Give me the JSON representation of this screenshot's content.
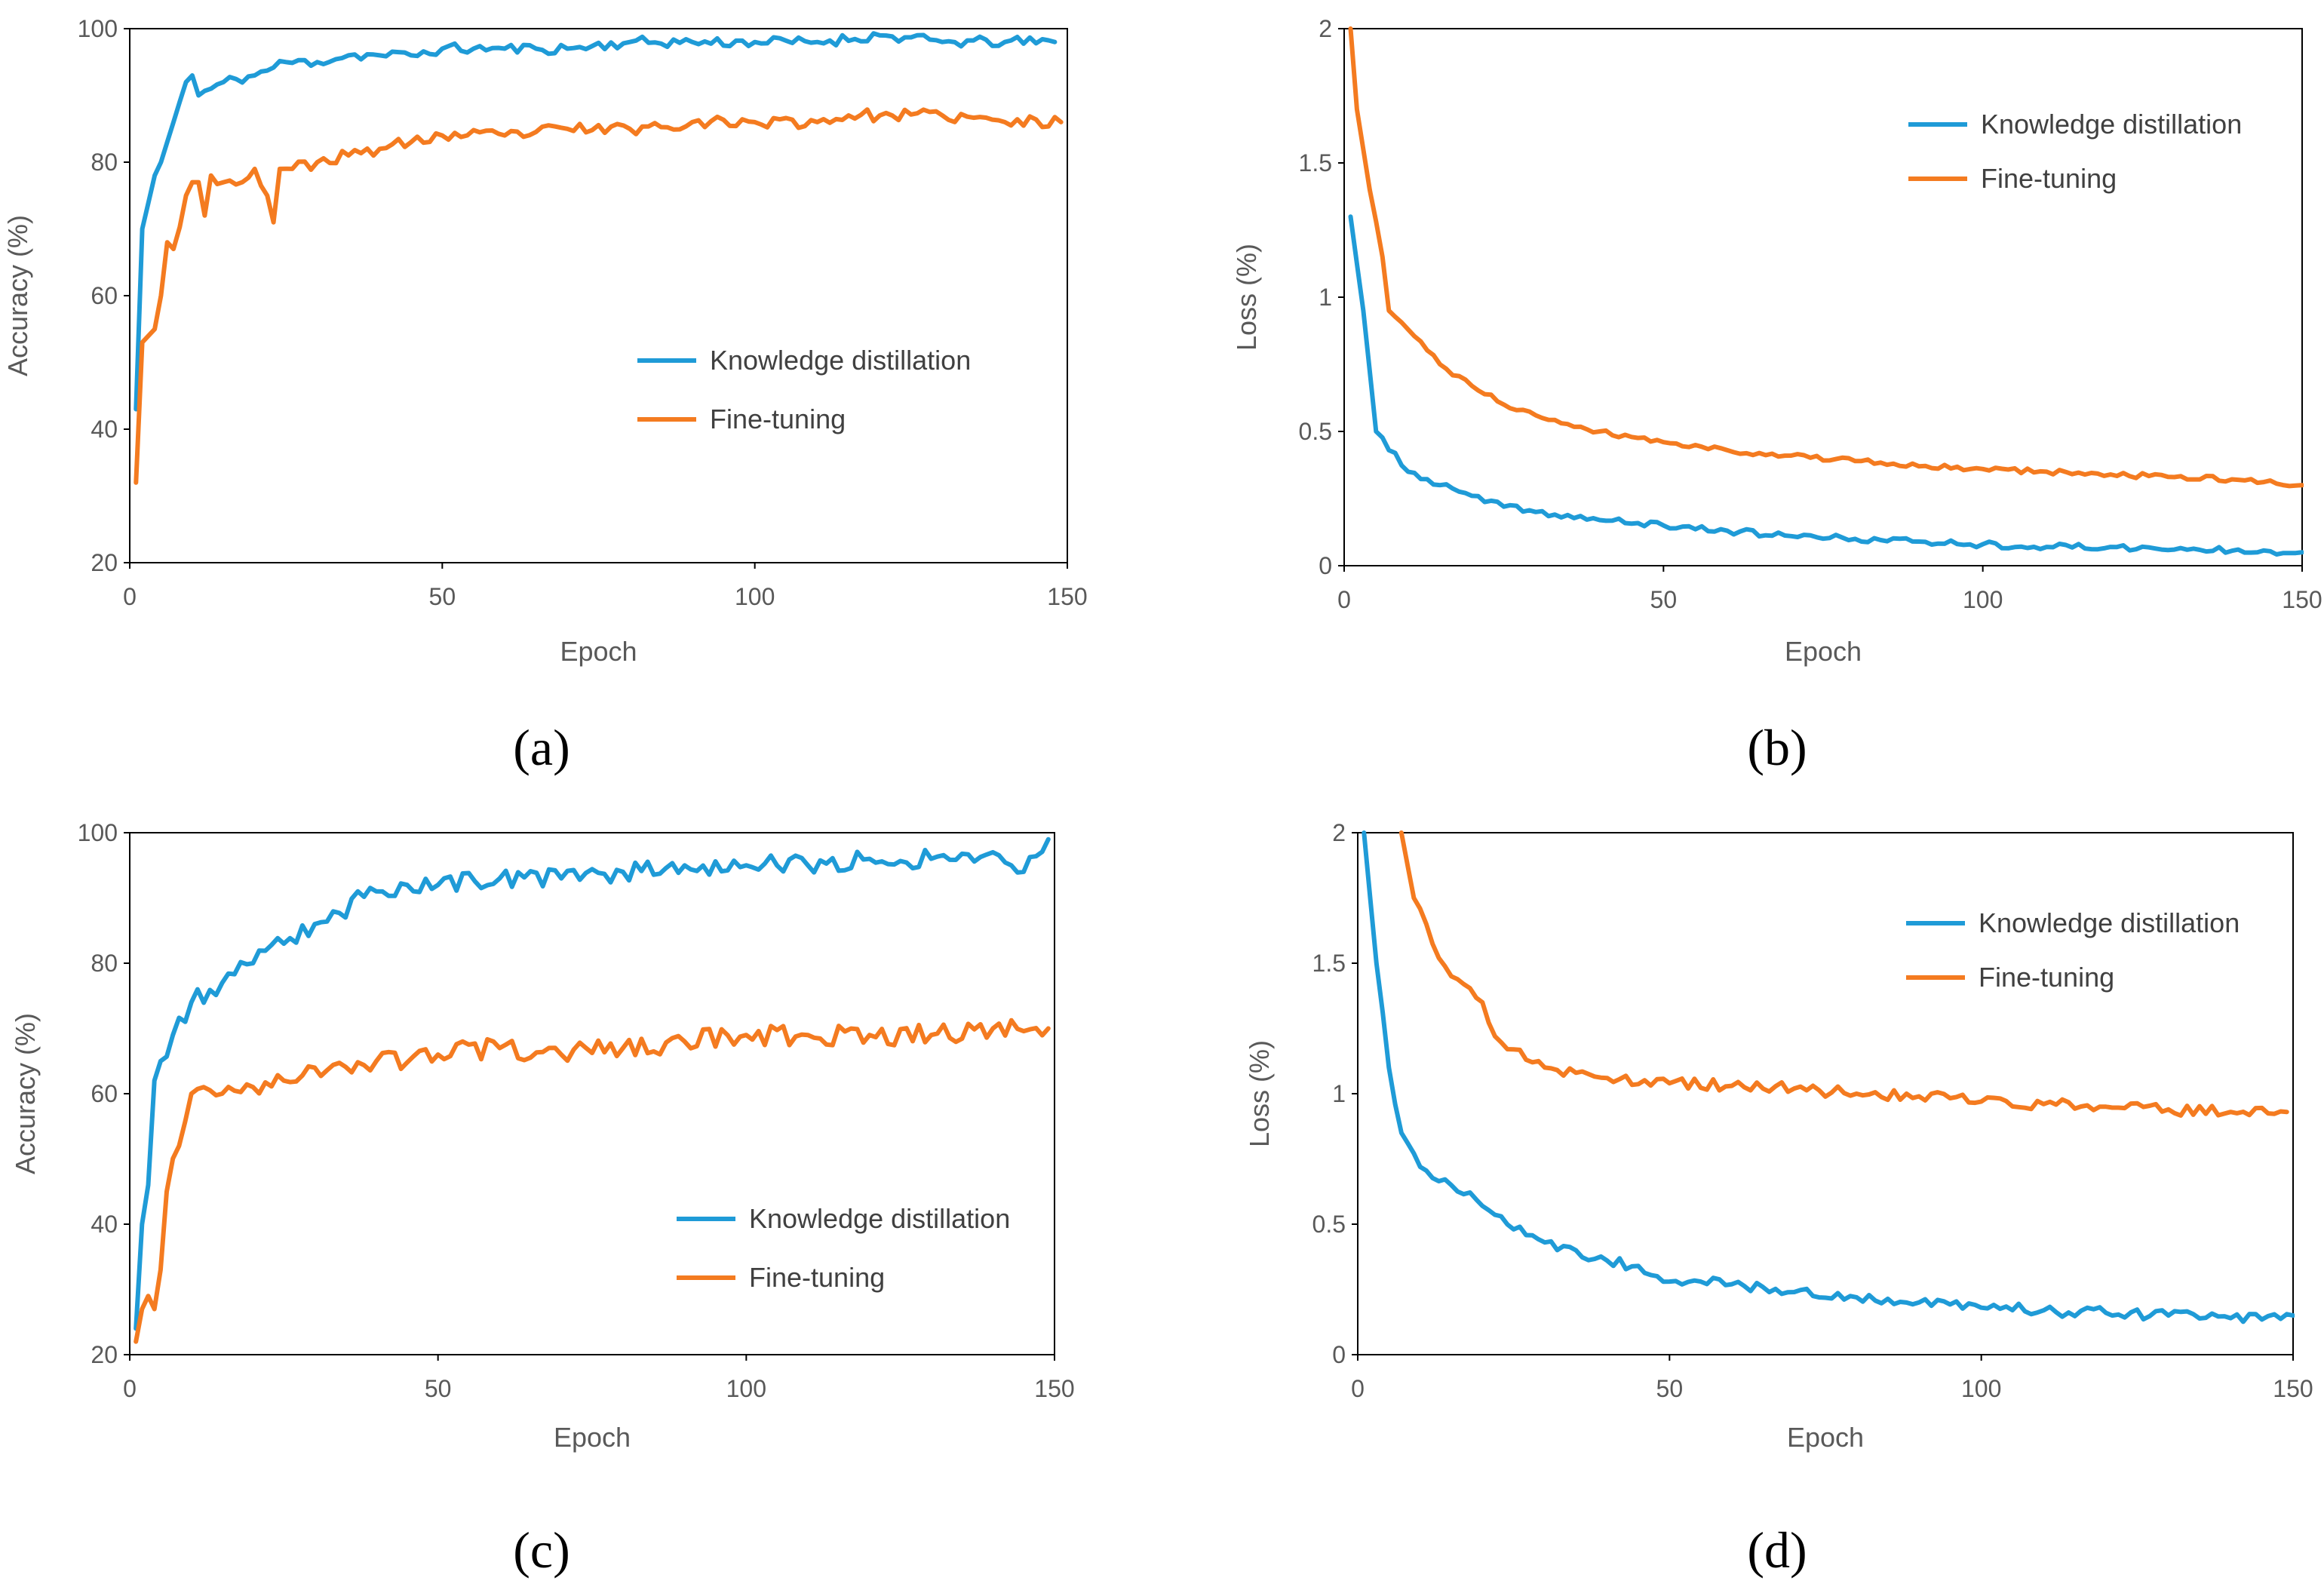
{
  "chart_data": [
    {
      "type": "line",
      "panel": "a",
      "caption": "(a)",
      "xlabel": "Epoch",
      "ylabel": "Accuracy (%)",
      "xlim": [
        0,
        150
      ],
      "ylim": [
        20,
        100
      ],
      "xticks": [
        0,
        50,
        100,
        150
      ],
      "yticks": [
        20,
        40,
        60,
        80,
        100
      ],
      "legend_position": "center-right",
      "series": [
        {
          "name": "Knowledge distillation",
          "color": "#1f9bd7",
          "start": 43,
          "anchors": [
            [
              1,
              43
            ],
            [
              2,
              70
            ],
            [
              4,
              78
            ],
            [
              5,
              80
            ],
            [
              7,
              86
            ],
            [
              9,
              92
            ],
            [
              10,
              93
            ],
            [
              11,
              90
            ],
            [
              13,
              91
            ],
            [
              15,
              92
            ],
            [
              20,
              93
            ],
            [
              25,
              95
            ],
            [
              30,
              95
            ],
            [
              35,
              96
            ],
            [
              40,
              96
            ],
            [
              45,
              96
            ],
            [
              50,
              97
            ],
            [
              55,
              97
            ],
            [
              60,
              97
            ],
            [
              65,
              97
            ],
            [
              70,
              97
            ],
            [
              80,
              98
            ],
            [
              90,
              98
            ],
            [
              100,
              98
            ],
            [
              110,
              98
            ],
            [
              120,
              99
            ],
            [
              130,
              98
            ],
            [
              140,
              98
            ],
            [
              148,
              98
            ]
          ],
          "noise": 0.8,
          "seed": 11
        },
        {
          "name": "Fine-tuning",
          "color": "#f47b20",
          "start": 32,
          "anchors": [
            [
              1,
              32
            ],
            [
              2,
              53
            ],
            [
              4,
              55
            ],
            [
              5,
              60
            ],
            [
              6,
              68
            ],
            [
              7,
              67
            ],
            [
              9,
              75
            ],
            [
              10,
              77
            ],
            [
              11,
              77
            ],
            [
              12,
              72
            ],
            [
              13,
              78
            ],
            [
              15,
              77
            ],
            [
              18,
              77
            ],
            [
              20,
              79
            ],
            [
              22,
              75
            ],
            [
              23,
              71
            ],
            [
              24,
              79
            ],
            [
              26,
              79
            ],
            [
              30,
              80
            ],
            [
              35,
              81
            ],
            [
              40,
              82
            ],
            [
              45,
              83
            ],
            [
              50,
              84
            ],
            [
              60,
              84
            ],
            [
              70,
              85
            ],
            [
              80,
              85
            ],
            [
              90,
              86
            ],
            [
              100,
              86
            ],
            [
              110,
              86
            ],
            [
              115,
              87
            ],
            [
              120,
              87
            ],
            [
              130,
              87
            ],
            [
              140,
              86
            ],
            [
              149,
              86
            ]
          ],
          "noise": 0.9,
          "seed": 23
        }
      ]
    },
    {
      "type": "line",
      "panel": "b",
      "caption": "(b)",
      "xlabel": "Epoch",
      "ylabel": "Loss (%)",
      "xlim": [
        0,
        150
      ],
      "ylim": [
        0,
        2
      ],
      "xticks": [
        0,
        50,
        100,
        150
      ],
      "yticks": [
        0,
        0.5,
        1,
        1.5,
        2
      ],
      "legend_position": "top-right",
      "series": [
        {
          "name": "Knowledge distillation",
          "color": "#1f9bd7",
          "start": 1.3,
          "anchors": [
            [
              1,
              1.3
            ],
            [
              3,
              0.95
            ],
            [
              5,
              0.5
            ],
            [
              7,
              0.43
            ],
            [
              8,
              0.42
            ],
            [
              10,
              0.35
            ],
            [
              15,
              0.3
            ],
            [
              20,
              0.26
            ],
            [
              25,
              0.22
            ],
            [
              30,
              0.2
            ],
            [
              40,
              0.17
            ],
            [
              50,
              0.15
            ],
            [
              60,
              0.13
            ],
            [
              70,
              0.11
            ],
            [
              80,
              0.1
            ],
            [
              90,
              0.09
            ],
            [
              100,
              0.08
            ],
            [
              110,
              0.07
            ],
            [
              120,
              0.07
            ],
            [
              130,
              0.06
            ],
            [
              140,
              0.06
            ],
            [
              150,
              0.05
            ]
          ],
          "noise": 0.012,
          "seed": 37
        },
        {
          "name": "Fine-tuning",
          "color": "#f47b20",
          "start": 2.0,
          "anchors": [
            [
              1,
              2.0
            ],
            [
              2,
              1.7
            ],
            [
              4,
              1.4
            ],
            [
              6,
              1.15
            ],
            [
              7,
              0.95
            ],
            [
              10,
              0.88
            ],
            [
              15,
              0.75
            ],
            [
              20,
              0.67
            ],
            [
              25,
              0.6
            ],
            [
              30,
              0.56
            ],
            [
              40,
              0.5
            ],
            [
              50,
              0.46
            ],
            [
              60,
              0.43
            ],
            [
              70,
              0.41
            ],
            [
              80,
              0.39
            ],
            [
              90,
              0.37
            ],
            [
              100,
              0.36
            ],
            [
              110,
              0.35
            ],
            [
              120,
              0.34
            ],
            [
              130,
              0.33
            ],
            [
              140,
              0.32
            ],
            [
              150,
              0.3
            ]
          ],
          "noise": 0.01,
          "seed": 41
        }
      ]
    },
    {
      "type": "line",
      "panel": "c",
      "caption": "(c)",
      "xlabel": "Epoch",
      "ylabel": "Accuracy (%)",
      "xlim": [
        0,
        150
      ],
      "ylim": [
        20,
        100
      ],
      "xticks": [
        0,
        50,
        100,
        150
      ],
      "yticks": [
        20,
        40,
        60,
        80,
        100
      ],
      "legend_position": "bottom-right",
      "series": [
        {
          "name": "Knowledge distillation",
          "color": "#1f9bd7",
          "start": 24,
          "anchors": [
            [
              1,
              24
            ],
            [
              2,
              40
            ],
            [
              3,
              46
            ],
            [
              4,
              62
            ],
            [
              5,
              65
            ],
            [
              7,
              69
            ],
            [
              10,
              74
            ],
            [
              15,
              77
            ],
            [
              20,
              80
            ],
            [
              25,
              83
            ],
            [
              30,
              86
            ],
            [
              35,
              87
            ],
            [
              37,
              91
            ],
            [
              40,
              91
            ],
            [
              45,
              92
            ],
            [
              50,
              92
            ],
            [
              60,
              93
            ],
            [
              70,
              93
            ],
            [
              80,
              94
            ],
            [
              90,
              95
            ],
            [
              100,
              95
            ],
            [
              110,
              95
            ],
            [
              120,
              96
            ],
            [
              130,
              96
            ],
            [
              140,
              97
            ],
            [
              145,
              94
            ],
            [
              149,
              99
            ]
          ],
          "noise": 1.5,
          "seed": 53
        },
        {
          "name": "Fine-tuning",
          "color": "#f47b20",
          "start": 22,
          "anchors": [
            [
              1,
              22
            ],
            [
              2,
              27
            ],
            [
              3,
              29
            ],
            [
              4,
              27
            ],
            [
              5,
              33
            ],
            [
              6,
              45
            ],
            [
              8,
              52
            ],
            [
              10,
              60
            ],
            [
              12,
              61
            ],
            [
              15,
              60
            ],
            [
              20,
              61
            ],
            [
              25,
              62
            ],
            [
              30,
              64
            ],
            [
              40,
              65
            ],
            [
              50,
              66
            ],
            [
              60,
              67
            ],
            [
              70,
              66
            ],
            [
              80,
              67
            ],
            [
              90,
              68
            ],
            [
              100,
              69
            ],
            [
              110,
              69
            ],
            [
              120,
              69
            ],
            [
              130,
              69
            ],
            [
              140,
              70
            ],
            [
              149,
              70
            ]
          ],
          "noise": 1.6,
          "seed": 67
        }
      ]
    },
    {
      "type": "line",
      "panel": "d",
      "caption": "(d)",
      "xlabel": "Epoch",
      "ylabel": "Loss (%)",
      "xlim": [
        0,
        150
      ],
      "ylim": [
        0,
        2
      ],
      "xticks": [
        0,
        50,
        100,
        150
      ],
      "yticks": [
        0,
        0.5,
        1,
        1.5,
        2
      ],
      "legend_position": "top-right",
      "series": [
        {
          "name": "Knowledge distillation",
          "color": "#1f9bd7",
          "start": 2.0,
          "anchors": [
            [
              1,
              2.0
            ],
            [
              3,
              1.5
            ],
            [
              5,
              1.1
            ],
            [
              7,
              0.85
            ],
            [
              10,
              0.72
            ],
            [
              15,
              0.65
            ],
            [
              20,
              0.57
            ],
            [
              25,
              0.48
            ],
            [
              30,
              0.43
            ],
            [
              35,
              0.4
            ],
            [
              40,
              0.36
            ],
            [
              45,
              0.34
            ],
            [
              50,
              0.28
            ],
            [
              55,
              0.28
            ],
            [
              60,
              0.27
            ],
            [
              70,
              0.24
            ],
            [
              80,
              0.22
            ],
            [
              90,
              0.2
            ],
            [
              100,
              0.18
            ],
            [
              110,
              0.17
            ],
            [
              120,
              0.16
            ],
            [
              130,
              0.15
            ],
            [
              140,
              0.14
            ],
            [
              150,
              0.15
            ]
          ],
          "noise": 0.022,
          "seed": 71
        },
        {
          "name": "Fine-tuning",
          "color": "#f47b20",
          "start": 2.0,
          "anchors": [
            [
              7,
              2.0
            ],
            [
              9,
              1.75
            ],
            [
              11,
              1.65
            ],
            [
              13,
              1.52
            ],
            [
              15,
              1.45
            ],
            [
              17,
              1.42
            ],
            [
              20,
              1.35
            ],
            [
              22,
              1.22
            ],
            [
              25,
              1.17
            ],
            [
              27,
              1.13
            ],
            [
              30,
              1.1
            ],
            [
              35,
              1.08
            ],
            [
              40,
              1.06
            ],
            [
              50,
              1.04
            ],
            [
              60,
              1.03
            ],
            [
              70,
              1.02
            ],
            [
              80,
              1.0
            ],
            [
              90,
              0.99
            ],
            [
              100,
              0.97
            ],
            [
              110,
              0.96
            ],
            [
              120,
              0.95
            ],
            [
              130,
              0.94
            ],
            [
              140,
              0.93
            ],
            [
              149,
              0.93
            ]
          ],
          "noise": 0.022,
          "seed": 83
        }
      ]
    }
  ]
}
